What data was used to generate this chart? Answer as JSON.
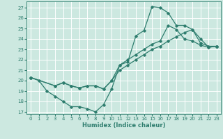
{
  "xlabel": "Humidex (Indice chaleur)",
  "bg_color": "#cce8e0",
  "grid_color": "#ffffff",
  "line_color": "#2e7d6e",
  "xlim": [
    -0.5,
    23.5
  ],
  "ylim": [
    16.8,
    27.6
  ],
  "xticks": [
    0,
    1,
    2,
    3,
    4,
    5,
    6,
    7,
    8,
    9,
    10,
    11,
    12,
    13,
    14,
    15,
    16,
    17,
    18,
    19,
    20,
    21,
    22,
    23
  ],
  "yticks": [
    17,
    18,
    19,
    20,
    21,
    22,
    23,
    24,
    25,
    26,
    27
  ],
  "line1_x": [
    0,
    1,
    2,
    3,
    4,
    5,
    6,
    7,
    8,
    9,
    10,
    11,
    12,
    13,
    14,
    15,
    16,
    17,
    18,
    19,
    20,
    21,
    22,
    23
  ],
  "line1_y": [
    20.3,
    20.0,
    19.0,
    18.5,
    18.0,
    17.5,
    17.5,
    17.3,
    17.0,
    17.7,
    19.2,
    21.5,
    21.8,
    24.3,
    24.8,
    27.1,
    27.0,
    26.5,
    25.3,
    25.3,
    24.9,
    23.6,
    23.3,
    23.3
  ],
  "line2_x": [
    0,
    3,
    4,
    5,
    6,
    7,
    8,
    9,
    10,
    11,
    12,
    13,
    14,
    15,
    16,
    17,
    18,
    19,
    20,
    21,
    22,
    23
  ],
  "line2_y": [
    20.3,
    19.5,
    19.8,
    19.5,
    19.3,
    19.5,
    19.5,
    19.2,
    20.0,
    21.5,
    22.0,
    22.5,
    23.0,
    23.5,
    23.8,
    25.3,
    24.9,
    24.0,
    23.8,
    23.4,
    23.2,
    23.3
  ],
  "line3_x": [
    0,
    3,
    4,
    5,
    6,
    7,
    8,
    9,
    10,
    11,
    12,
    13,
    14,
    15,
    16,
    17,
    18,
    19,
    20,
    21,
    22,
    23
  ],
  "line3_y": [
    20.3,
    19.5,
    19.8,
    19.5,
    19.3,
    19.5,
    19.5,
    19.2,
    20.0,
    21.0,
    21.5,
    22.0,
    22.5,
    23.0,
    23.3,
    23.8,
    24.2,
    24.6,
    24.9,
    24.0,
    23.2,
    23.3
  ]
}
